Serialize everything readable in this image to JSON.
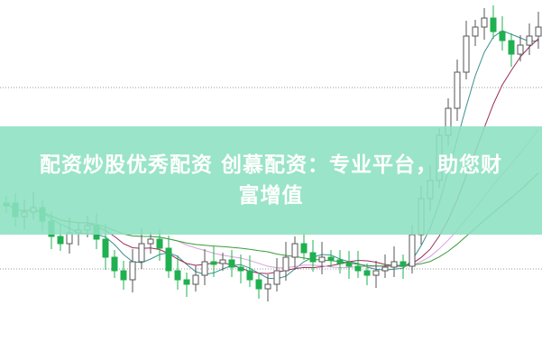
{
  "banner": {
    "line1": "配资炒股优秀配资 创慕配资：专业平台，助您财",
    "line2": "富增值"
  },
  "colors": {
    "banner_bg": "#8ce0c1",
    "candle_down": "#1fb04f",
    "candle_up": "#555555",
    "ma_short": "#3a8f8f",
    "ma_mid": "#9b2d5a",
    "ma_long": "#3a9b3a",
    "ma_pink": "#d7a0d6"
  }
}
